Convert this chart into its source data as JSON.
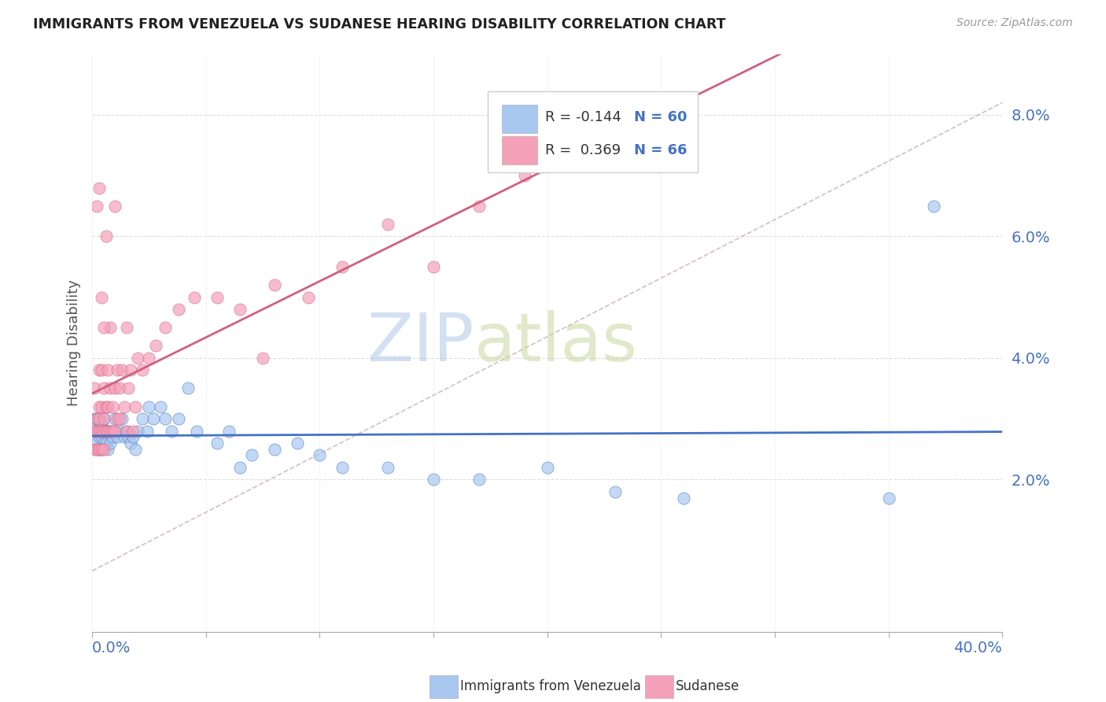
{
  "title": "IMMIGRANTS FROM VENEZUELA VS SUDANESE HEARING DISABILITY CORRELATION CHART",
  "source": "Source: ZipAtlas.com",
  "ylabel": "Hearing Disability",
  "xlim": [
    0.0,
    0.4
  ],
  "ylim": [
    -0.005,
    0.09
  ],
  "yticks": [
    0.02,
    0.04,
    0.06,
    0.08
  ],
  "ytick_labels": [
    "2.0%",
    "4.0%",
    "6.0%",
    "8.0%"
  ],
  "legend_r1": "-0.144",
  "legend_n1": "60",
  "legend_r2": "0.369",
  "legend_n2": "66",
  "color_blue": "#a8c8f0",
  "color_pink": "#f4a0b8",
  "color_blue_line": "#4472c4",
  "color_pink_line": "#d06080",
  "color_ref_line": "#c8b0b0",
  "watermark_color": "#dce8f5",
  "blue_scatter_x": [
    0.001,
    0.001,
    0.002,
    0.002,
    0.002,
    0.003,
    0.003,
    0.003,
    0.003,
    0.004,
    0.004,
    0.004,
    0.005,
    0.005,
    0.005,
    0.006,
    0.006,
    0.007,
    0.007,
    0.008,
    0.008,
    0.009,
    0.01,
    0.01,
    0.011,
    0.012,
    0.013,
    0.014,
    0.015,
    0.016,
    0.017,
    0.018,
    0.019,
    0.02,
    0.022,
    0.024,
    0.025,
    0.027,
    0.03,
    0.032,
    0.035,
    0.038,
    0.042,
    0.046,
    0.055,
    0.06,
    0.065,
    0.07,
    0.08,
    0.09,
    0.1,
    0.11,
    0.13,
    0.15,
    0.17,
    0.2,
    0.23,
    0.26,
    0.35,
    0.37
  ],
  "blue_scatter_y": [
    0.028,
    0.03,
    0.026,
    0.028,
    0.03,
    0.025,
    0.027,
    0.028,
    0.03,
    0.025,
    0.027,
    0.029,
    0.026,
    0.028,
    0.03,
    0.026,
    0.028,
    0.025,
    0.028,
    0.026,
    0.028,
    0.027,
    0.028,
    0.03,
    0.027,
    0.028,
    0.03,
    0.027,
    0.028,
    0.027,
    0.026,
    0.027,
    0.025,
    0.028,
    0.03,
    0.028,
    0.032,
    0.03,
    0.032,
    0.03,
    0.028,
    0.03,
    0.035,
    0.028,
    0.026,
    0.028,
    0.022,
    0.024,
    0.025,
    0.026,
    0.024,
    0.022,
    0.022,
    0.02,
    0.02,
    0.022,
    0.018,
    0.017,
    0.017,
    0.065
  ],
  "pink_scatter_x": [
    0.001,
    0.001,
    0.001,
    0.002,
    0.002,
    0.002,
    0.003,
    0.003,
    0.003,
    0.003,
    0.003,
    0.004,
    0.004,
    0.004,
    0.004,
    0.005,
    0.005,
    0.005,
    0.005,
    0.006,
    0.006,
    0.007,
    0.007,
    0.007,
    0.008,
    0.008,
    0.009,
    0.009,
    0.01,
    0.01,
    0.011,
    0.011,
    0.012,
    0.012,
    0.013,
    0.014,
    0.015,
    0.016,
    0.017,
    0.018,
    0.019,
    0.02,
    0.022,
    0.025,
    0.028,
    0.032,
    0.038,
    0.045,
    0.055,
    0.065,
    0.08,
    0.095,
    0.11,
    0.13,
    0.15,
    0.17,
    0.19,
    0.075,
    0.008,
    0.004,
    0.003,
    0.002,
    0.005,
    0.01,
    0.006,
    0.015
  ],
  "pink_scatter_y": [
    0.025,
    0.028,
    0.035,
    0.025,
    0.028,
    0.03,
    0.025,
    0.028,
    0.03,
    0.032,
    0.038,
    0.025,
    0.028,
    0.032,
    0.038,
    0.025,
    0.028,
    0.03,
    0.035,
    0.028,
    0.032,
    0.028,
    0.032,
    0.038,
    0.028,
    0.035,
    0.028,
    0.032,
    0.028,
    0.035,
    0.03,
    0.038,
    0.03,
    0.035,
    0.038,
    0.032,
    0.028,
    0.035,
    0.038,
    0.028,
    0.032,
    0.04,
    0.038,
    0.04,
    0.042,
    0.045,
    0.048,
    0.05,
    0.05,
    0.048,
    0.052,
    0.05,
    0.055,
    0.062,
    0.055,
    0.065,
    0.07,
    0.04,
    0.045,
    0.05,
    0.068,
    0.065,
    0.045,
    0.065,
    0.06,
    0.045
  ]
}
